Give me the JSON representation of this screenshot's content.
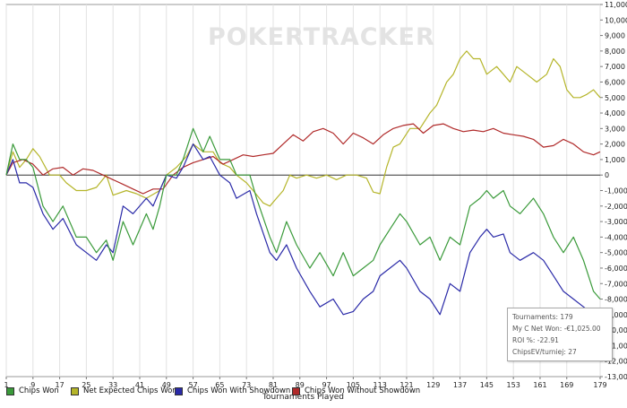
{
  "watermark": "POKERTRACKER",
  "chart_data": {
    "type": "line",
    "xlabel": "Tournaments Played",
    "ylabel": "",
    "xlim": [
      1,
      179
    ],
    "ylim": [
      -13000,
      11000
    ],
    "x_ticks": [
      1,
      9,
      17,
      25,
      33,
      41,
      49,
      57,
      65,
      73,
      81,
      89,
      97,
      105,
      113,
      121,
      129,
      137,
      145,
      153,
      161,
      169,
      179
    ],
    "y_ticks": [
      11000,
      10000,
      9000,
      8000,
      7000,
      6000,
      5000,
      4000,
      3000,
      2000,
      1000,
      0,
      -1000,
      -2000,
      -3000,
      -4000,
      -5000,
      -6000,
      -7000,
      -8000,
      -9000,
      -10000,
      -11000,
      -12000,
      -13000
    ],
    "y_tick_labels": [
      "11,000",
      "10,000",
      "9,000",
      "8,000",
      "7,000",
      "6,000",
      "5,000",
      "4,000",
      "3,000",
      "2,000",
      "1,000",
      "0",
      "-1,000",
      "-2,000",
      "-3,000",
      "-4,000",
      "-5,000",
      "-6,000",
      "-7,000",
      "-8,000",
      "-9,000",
      "-10,000",
      "-11,000",
      "-12,000",
      "-13,000"
    ],
    "grid": "vertical",
    "legend_position": "bottom",
    "series": [
      {
        "name": "Chips Won",
        "color": "#3a9a3a",
        "points": [
          [
            1,
            0
          ],
          [
            3,
            2000
          ],
          [
            5,
            1000
          ],
          [
            7,
            1000
          ],
          [
            9,
            500
          ],
          [
            12,
            -2000
          ],
          [
            15,
            -3000
          ],
          [
            18,
            -2000
          ],
          [
            22,
            -4000
          ],
          [
            25,
            -4000
          ],
          [
            28,
            -5000
          ],
          [
            31,
            -4200
          ],
          [
            33,
            -5500
          ],
          [
            36,
            -3000
          ],
          [
            39,
            -4500
          ],
          [
            43,
            -2500
          ],
          [
            45,
            -3500
          ],
          [
            47,
            -2000
          ],
          [
            49,
            0
          ],
          [
            52,
            0
          ],
          [
            54,
            1000
          ],
          [
            57,
            3000
          ],
          [
            60,
            1500
          ],
          [
            62,
            2500
          ],
          [
            65,
            1000
          ],
          [
            68,
            1000
          ],
          [
            70,
            0
          ],
          [
            74,
            0
          ],
          [
            76,
            -1500
          ],
          [
            80,
            -4000
          ],
          [
            82,
            -5000
          ],
          [
            85,
            -3000
          ],
          [
            88,
            -4500
          ],
          [
            92,
            -6000
          ],
          [
            95,
            -5000
          ],
          [
            99,
            -6500
          ],
          [
            102,
            -5000
          ],
          [
            105,
            -6500
          ],
          [
            108,
            -6000
          ],
          [
            111,
            -5500
          ],
          [
            113,
            -4500
          ],
          [
            116,
            -3500
          ],
          [
            119,
            -2500
          ],
          [
            121,
            -3000
          ],
          [
            125,
            -4500
          ],
          [
            128,
            -4000
          ],
          [
            131,
            -5500
          ],
          [
            134,
            -4000
          ],
          [
            137,
            -4500
          ],
          [
            140,
            -2000
          ],
          [
            143,
            -1500
          ],
          [
            145,
            -1000
          ],
          [
            147,
            -1500
          ],
          [
            150,
            -1000
          ],
          [
            152,
            -2000
          ],
          [
            155,
            -2500
          ],
          [
            159,
            -1500
          ],
          [
            162,
            -2500
          ],
          [
            165,
            -4000
          ],
          [
            168,
            -5000
          ],
          [
            171,
            -4000
          ],
          [
            174,
            -5500
          ],
          [
            177,
            -7500
          ],
          [
            179,
            -8000
          ]
        ]
      },
      {
        "name": "Net Expected Chips Won",
        "color": "#b5b52a",
        "points": [
          [
            1,
            0
          ],
          [
            3,
            1500
          ],
          [
            5,
            500
          ],
          [
            7,
            1000
          ],
          [
            9,
            1700
          ],
          [
            11,
            1200
          ],
          [
            14,
            0
          ],
          [
            17,
            0
          ],
          [
            19,
            -500
          ],
          [
            22,
            -1000
          ],
          [
            25,
            -1000
          ],
          [
            28,
            -800
          ],
          [
            31,
            0
          ],
          [
            33,
            -1300
          ],
          [
            37,
            -1000
          ],
          [
            40,
            -1200
          ],
          [
            43,
            -1500
          ],
          [
            47,
            -1000
          ],
          [
            49,
            0
          ],
          [
            52,
            500
          ],
          [
            55,
            1200
          ],
          [
            57,
            2000
          ],
          [
            60,
            1500
          ],
          [
            63,
            1500
          ],
          [
            65,
            800
          ],
          [
            68,
            500
          ],
          [
            70,
            0
          ],
          [
            73,
            -500
          ],
          [
            75,
            -1000
          ],
          [
            78,
            -1800
          ],
          [
            80,
            -2000
          ],
          [
            82,
            -1500
          ],
          [
            84,
            -1000
          ],
          [
            86,
            0
          ],
          [
            88,
            -200
          ],
          [
            91,
            0
          ],
          [
            94,
            -200
          ],
          [
            97,
            0
          ],
          [
            100,
            -300
          ],
          [
            103,
            0
          ],
          [
            106,
            0
          ],
          [
            109,
            -200
          ],
          [
            111,
            -1100
          ],
          [
            113,
            -1200
          ],
          [
            115,
            500
          ],
          [
            117,
            1800
          ],
          [
            119,
            2000
          ],
          [
            122,
            3000
          ],
          [
            125,
            3000
          ],
          [
            128,
            4000
          ],
          [
            130,
            4500
          ],
          [
            133,
            6000
          ],
          [
            135,
            6500
          ],
          [
            137,
            7500
          ],
          [
            139,
            8000
          ],
          [
            141,
            7500
          ],
          [
            143,
            7500
          ],
          [
            145,
            6500
          ],
          [
            148,
            7000
          ],
          [
            150,
            6500
          ],
          [
            152,
            6000
          ],
          [
            154,
            7000
          ],
          [
            157,
            6500
          ],
          [
            160,
            6000
          ],
          [
            163,
            6500
          ],
          [
            165,
            7500
          ],
          [
            167,
            7000
          ],
          [
            169,
            5500
          ],
          [
            171,
            5000
          ],
          [
            173,
            5000
          ],
          [
            175,
            5200
          ],
          [
            177,
            5500
          ],
          [
            179,
            5000
          ]
        ]
      },
      {
        "name": "Chips Won With Showdown",
        "color": "#2a2aa8",
        "points": [
          [
            1,
            0
          ],
          [
            3,
            1000
          ],
          [
            5,
            -500
          ],
          [
            7,
            -500
          ],
          [
            9,
            -800
          ],
          [
            12,
            -2500
          ],
          [
            15,
            -3500
          ],
          [
            18,
            -2800
          ],
          [
            22,
            -4500
          ],
          [
            25,
            -5000
          ],
          [
            28,
            -5500
          ],
          [
            31,
            -4500
          ],
          [
            33,
            -5000
          ],
          [
            36,
            -2000
          ],
          [
            39,
            -2500
          ],
          [
            43,
            -1500
          ],
          [
            45,
            -2000
          ],
          [
            47,
            -1000
          ],
          [
            49,
            0
          ],
          [
            52,
            -200
          ],
          [
            54,
            500
          ],
          [
            57,
            2000
          ],
          [
            60,
            1000
          ],
          [
            62,
            1200
          ],
          [
            65,
            0
          ],
          [
            68,
            -500
          ],
          [
            70,
            -1500
          ],
          [
            74,
            -1000
          ],
          [
            76,
            -2500
          ],
          [
            80,
            -5000
          ],
          [
            82,
            -5500
          ],
          [
            85,
            -4500
          ],
          [
            88,
            -6000
          ],
          [
            92,
            -7500
          ],
          [
            95,
            -8500
          ],
          [
            99,
            -8000
          ],
          [
            102,
            -9000
          ],
          [
            105,
            -8800
          ],
          [
            108,
            -8000
          ],
          [
            111,
            -7500
          ],
          [
            113,
            -6500
          ],
          [
            116,
            -6000
          ],
          [
            119,
            -5500
          ],
          [
            121,
            -6000
          ],
          [
            125,
            -7500
          ],
          [
            128,
            -8000
          ],
          [
            131,
            -9000
          ],
          [
            134,
            -7000
          ],
          [
            137,
            -7500
          ],
          [
            140,
            -5000
          ],
          [
            143,
            -4000
          ],
          [
            145,
            -3500
          ],
          [
            147,
            -4000
          ],
          [
            150,
            -3800
          ],
          [
            152,
            -5000
          ],
          [
            155,
            -5500
          ],
          [
            159,
            -5000
          ],
          [
            162,
            -5500
          ],
          [
            165,
            -6500
          ],
          [
            168,
            -7500
          ],
          [
            171,
            -8000
          ],
          [
            174,
            -8500
          ],
          [
            177,
            -9000
          ],
          [
            179,
            -10000
          ]
        ]
      },
      {
        "name": "Chips Won Without Showdown",
        "color": "#b02a2a",
        "points": [
          [
            1,
            0
          ],
          [
            3,
            800
          ],
          [
            6,
            1000
          ],
          [
            9,
            700
          ],
          [
            12,
            0
          ],
          [
            15,
            400
          ],
          [
            18,
            500
          ],
          [
            21,
            0
          ],
          [
            24,
            400
          ],
          [
            27,
            300
          ],
          [
            30,
            0
          ],
          [
            33,
            -300
          ],
          [
            36,
            -600
          ],
          [
            39,
            -900
          ],
          [
            42,
            -1200
          ],
          [
            45,
            -900
          ],
          [
            48,
            -900
          ],
          [
            51,
            0
          ],
          [
            54,
            500
          ],
          [
            57,
            800
          ],
          [
            60,
            1000
          ],
          [
            63,
            1200
          ],
          [
            66,
            700
          ],
          [
            69,
            1000
          ],
          [
            72,
            1300
          ],
          [
            75,
            1200
          ],
          [
            78,
            1300
          ],
          [
            81,
            1400
          ],
          [
            84,
            2000
          ],
          [
            87,
            2600
          ],
          [
            90,
            2200
          ],
          [
            93,
            2800
          ],
          [
            96,
            3000
          ],
          [
            99,
            2700
          ],
          [
            102,
            2000
          ],
          [
            105,
            2700
          ],
          [
            108,
            2400
          ],
          [
            111,
            2000
          ],
          [
            114,
            2600
          ],
          [
            117,
            3000
          ],
          [
            120,
            3200
          ],
          [
            123,
            3300
          ],
          [
            126,
            2700
          ],
          [
            129,
            3200
          ],
          [
            132,
            3300
          ],
          [
            135,
            3000
          ],
          [
            138,
            2800
          ],
          [
            141,
            2900
          ],
          [
            144,
            2800
          ],
          [
            147,
            3000
          ],
          [
            150,
            2700
          ],
          [
            153,
            2600
          ],
          [
            156,
            2500
          ],
          [
            159,
            2300
          ],
          [
            162,
            1800
          ],
          [
            165,
            1900
          ],
          [
            168,
            2300
          ],
          [
            171,
            2000
          ],
          [
            174,
            1500
          ],
          [
            177,
            1300
          ],
          [
            179,
            1500
          ]
        ]
      }
    ]
  },
  "tooltip": {
    "lines": [
      "Tournaments: 179",
      "My C Net Won: -€1,025.00",
      "ROI %: -22.91",
      "ChipsEV/turniej: 27"
    ]
  }
}
